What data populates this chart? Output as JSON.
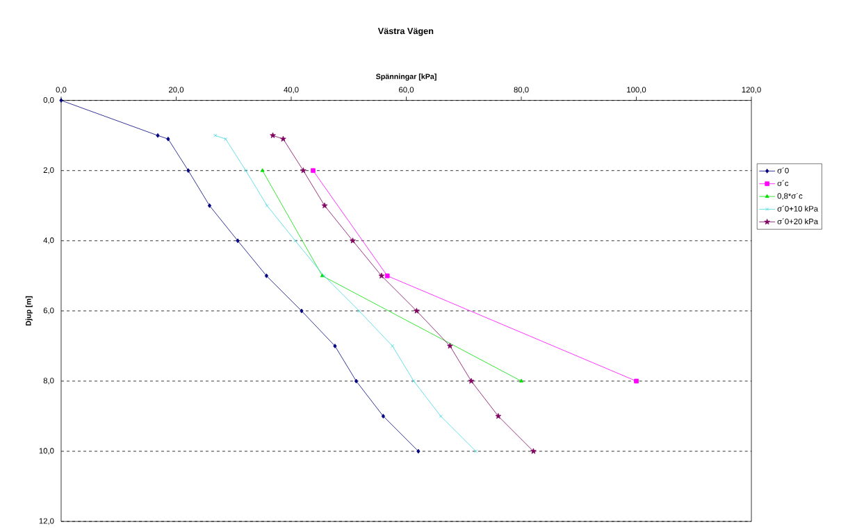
{
  "chart_data": {
    "type": "line",
    "title": "Västra Vägen",
    "xlabel": "Spänningar [kPa]",
    "ylabel": "Djup [m]",
    "xlim": [
      0,
      120
    ],
    "ylim": [
      12,
      0
    ],
    "xticks": [
      {
        "value": 0,
        "label": "0,0"
      },
      {
        "value": 20,
        "label": "20,0"
      },
      {
        "value": 40,
        "label": "40,0"
      },
      {
        "value": 60,
        "label": "60,0"
      },
      {
        "value": 80,
        "label": "80,0"
      },
      {
        "value": 100,
        "label": "100,0"
      },
      {
        "value": 120,
        "label": "120,0"
      }
    ],
    "yticks": [
      {
        "value": 0,
        "label": "0,0"
      },
      {
        "value": 2,
        "label": "2,0"
      },
      {
        "value": 4,
        "label": "4,0"
      },
      {
        "value": 6,
        "label": "6,0"
      },
      {
        "value": 8,
        "label": "8,0"
      },
      {
        "value": 10,
        "label": "10,0"
      },
      {
        "value": 12,
        "label": "12,0"
      }
    ],
    "grid": "y",
    "legend": "right",
    "line_style": "solid",
    "series": [
      {
        "name": "σ´0",
        "color": "#000080",
        "marker": "diamond",
        "x": [
          0,
          16.8,
          18.6,
          22.1,
          25.8,
          30.7,
          35.7,
          41.8,
          47.6,
          51.3,
          56.0,
          62.1
        ],
        "values": [
          0,
          1.0,
          1.1,
          2,
          3,
          4,
          5,
          6,
          7,
          8,
          9,
          10
        ]
      },
      {
        "name": "σ´c",
        "color": "#ff00ff",
        "marker": "square",
        "x": [
          43.8,
          56.7,
          100
        ],
        "values": [
          2,
          5,
          8
        ]
      },
      {
        "name": "0,8*σ´c",
        "color": "#00e000",
        "marker": "triangle",
        "x": [
          35.0,
          45.4,
          80.0
        ],
        "values": [
          2,
          5,
          8
        ]
      },
      {
        "name": "σ´0+10 kPa",
        "color": "#40d8e0",
        "marker": "cross",
        "x": [
          26.8,
          28.6,
          32.1,
          35.8,
          40.7,
          45.7,
          51.8,
          57.6,
          61.3,
          66.0,
          72.1
        ],
        "values": [
          1.0,
          1.1,
          2,
          3,
          4,
          5,
          6,
          7,
          8,
          9,
          10
        ]
      },
      {
        "name": "σ´0+20 kPa",
        "color": "#800060",
        "marker": "star",
        "x": [
          36.8,
          38.6,
          42.1,
          45.8,
          50.7,
          55.7,
          61.8,
          67.6,
          71.3,
          76.0,
          82.1
        ],
        "values": [
          1.0,
          1.1,
          2,
          3,
          4,
          5,
          6,
          7,
          8,
          9,
          10
        ]
      }
    ]
  }
}
